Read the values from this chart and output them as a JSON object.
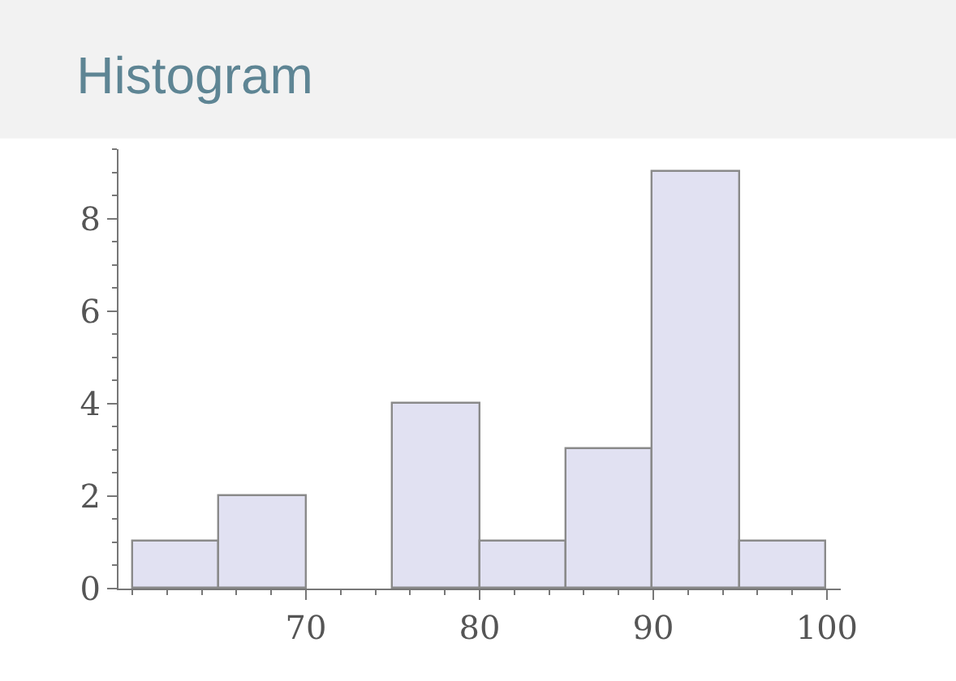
{
  "chart_data": {
    "type": "histogram",
    "title": "Histogram",
    "bins": [
      60,
      65,
      70,
      75,
      80,
      85,
      90,
      95,
      100
    ],
    "values": [
      1,
      2,
      0,
      4,
      1,
      3,
      9,
      1
    ],
    "color": "#e1e1f2",
    "xlim": [
      59.2,
      100.8
    ],
    "xticks": [
      70,
      80,
      90,
      100
    ],
    "ylim": [
      0,
      9.5
    ],
    "yticks": [
      0,
      2,
      4,
      6,
      8
    ]
  }
}
